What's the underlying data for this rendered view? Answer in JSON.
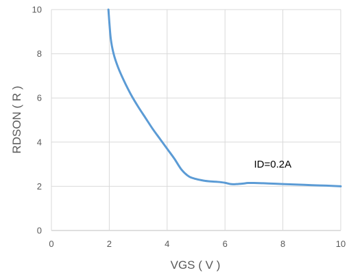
{
  "chart_data": {
    "type": "line",
    "title": "",
    "xlabel": "VGS ( V )",
    "ylabel": "RDSON ( R )",
    "xlim": [
      0,
      10
    ],
    "ylim": [
      0,
      10
    ],
    "xticks": [
      0,
      2,
      4,
      6,
      8,
      10
    ],
    "yticks": [
      0,
      2,
      4,
      6,
      8,
      10
    ],
    "grid": true,
    "legend": "none",
    "series": [
      {
        "color": "#5b9bd5",
        "x": [
          1.97,
          2.05,
          2.15,
          2.3,
          2.5,
          2.75,
          3.0,
          3.25,
          3.5,
          3.75,
          4.0,
          4.25,
          4.5,
          4.75,
          5.0,
          5.25,
          5.5,
          5.75,
          6.0,
          6.2,
          6.4,
          6.6,
          6.8,
          7.0,
          7.5,
          8.0,
          8.5,
          9.0,
          9.5,
          10.0
        ],
        "y": [
          10.0,
          8.7,
          8.0,
          7.4,
          6.8,
          6.15,
          5.6,
          5.1,
          4.6,
          4.15,
          3.7,
          3.25,
          2.75,
          2.45,
          2.33,
          2.26,
          2.22,
          2.2,
          2.16,
          2.1,
          2.1,
          2.12,
          2.15,
          2.15,
          2.13,
          2.1,
          2.08,
          2.05,
          2.03,
          2.0
        ]
      }
    ],
    "annotations": [
      {
        "text": "ID=0.2A",
        "x": 7.65,
        "y": 2.85
      }
    ]
  }
}
